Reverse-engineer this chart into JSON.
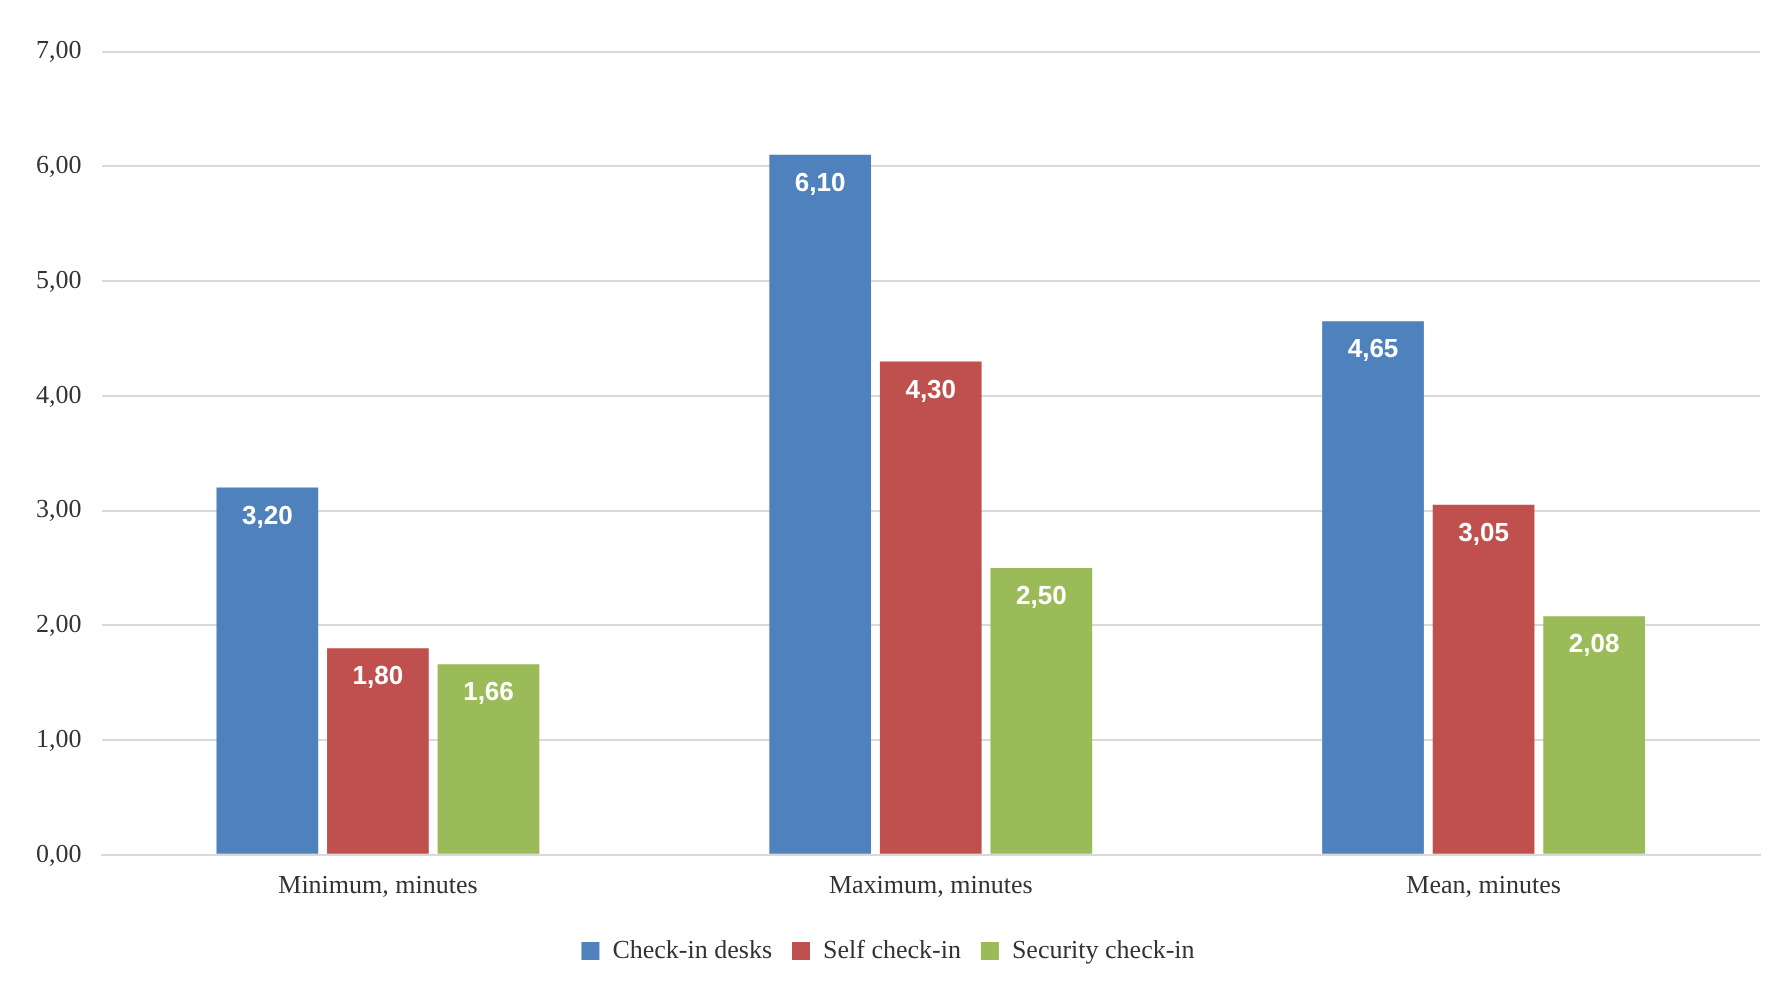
{
  "chart_data": {
    "type": "bar",
    "categories": [
      "Minimum, minutes",
      "Maximum, minutes",
      "Mean, minutes"
    ],
    "series": [
      {
        "name": "Check-in desks",
        "color": "#4f81bd",
        "values": [
          3.2,
          6.1,
          4.65
        ],
        "value_labels": [
          "3,20",
          "6,10",
          "4,65"
        ]
      },
      {
        "name": "Self check-in",
        "color": "#c0504d",
        "values": [
          1.8,
          4.3,
          3.05
        ],
        "value_labels": [
          "1,80",
          "4,30",
          "3,05"
        ]
      },
      {
        "name": "Security check-in",
        "color": "#9bbb59",
        "values": [
          1.66,
          2.5,
          2.08
        ],
        "value_labels": [
          "1,66",
          "2,50",
          "2,08"
        ]
      }
    ],
    "ylim": [
      0,
      7
    ],
    "yticks": [
      {
        "value": 0,
        "label": "0,00"
      },
      {
        "value": 1,
        "label": "1,00"
      },
      {
        "value": 2,
        "label": "2,00"
      },
      {
        "value": 3,
        "label": "3,00"
      },
      {
        "value": 4,
        "label": "4,00"
      },
      {
        "value": 5,
        "label": "5,00"
      },
      {
        "value": 6,
        "label": "6,00"
      },
      {
        "value": 7,
        "label": "7,00"
      }
    ],
    "grid": "y",
    "legend": "bottom"
  }
}
